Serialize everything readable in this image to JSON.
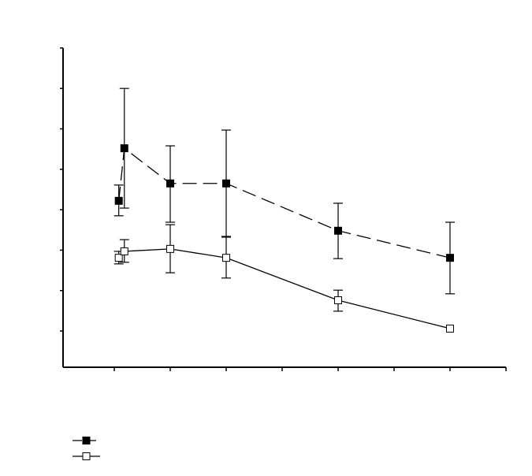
{
  "chart_data": {
    "type": "line",
    "title": "",
    "xlabel": "",
    "ylabel": "",
    "xlim": [
      0.08,
      8
    ],
    "ylim": [
      0.1,
      8
    ],
    "xticks": [
      1,
      2,
      3,
      4,
      5,
      6,
      7,
      8
    ],
    "yticks": [
      1,
      2,
      3,
      4,
      5,
      6,
      7,
      8
    ],
    "grid": false,
    "legend_placement": "bottom-left",
    "series": [
      {
        "marker": "filled-square",
        "line_style": "dashed",
        "color": "#000000",
        "x": [
          1.08,
          1.18,
          2,
          3,
          5,
          7
        ],
        "y": [
          4.22,
          5.52,
          4.65,
          4.65,
          3.48,
          2.81
        ],
        "err_low": [
          3.85,
          4.04,
          3.69,
          3.32,
          2.79,
          1.92
        ],
        "err_high": [
          4.61,
          7.0,
          5.58,
          5.97,
          4.16,
          3.69
        ]
      },
      {
        "marker": "open-square",
        "line_style": "solid",
        "color": "#000000",
        "x": [
          1.08,
          1.18,
          2,
          3,
          5,
          7
        ],
        "y": [
          2.81,
          2.97,
          3.03,
          2.81,
          1.76,
          1.06
        ],
        "err_low": [
          2.66,
          2.7,
          2.44,
          2.31,
          1.49,
          null
        ],
        "err_high": [
          2.97,
          3.26,
          3.63,
          3.34,
          2.01,
          null
        ]
      }
    ]
  }
}
